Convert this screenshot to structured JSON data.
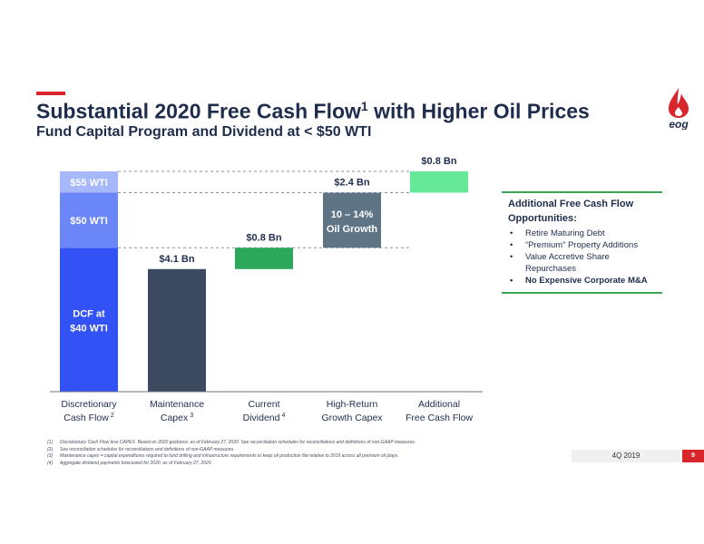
{
  "header": {
    "title_main": "Substantial 2020 Free Cash Flow",
    "title_sup": "1",
    "title_rest": " with Higher Oil Prices",
    "subtitle": "Fund Capital Program and Dividend at < $50 WTI",
    "logo_text": "eog"
  },
  "chart_data": {
    "type": "bar",
    "categories": [
      {
        "line1": "Discretionary",
        "line2": "Cash Flow",
        "sup": "2"
      },
      {
        "line1": "Maintenance",
        "line2": "Capex",
        "sup": "3"
      },
      {
        "line1": "Current",
        "line2": "Dividend",
        "sup": "4"
      },
      {
        "line1": "High-Return",
        "line2": "Growth Capex",
        "sup": ""
      },
      {
        "line1": "Additional",
        "line2": "Free Cash Flow",
        "sup": ""
      }
    ],
    "segments": [
      {
        "col": 0,
        "from": 0,
        "to": 8.1,
        "color": "#3352f5",
        "label1": "DCF at",
        "label2": "$40 WTI"
      },
      {
        "col": 0,
        "from": 8.1,
        "to": 11.2,
        "color": "#6b86f7",
        "label1": "$50 WTI",
        "label2": ""
      },
      {
        "col": 0,
        "from": 11.2,
        "to": 12.4,
        "color": "#a6b7fa",
        "label1": "$55 WTI",
        "label2": ""
      },
      {
        "col": 1,
        "from": 0,
        "to": 6.9,
        "color": "#3c4a5f",
        "label1": "",
        "label2": ""
      },
      {
        "col": 2,
        "from": 6.9,
        "to": 8.1,
        "color": "#2ba85a",
        "label1": "",
        "label2": ""
      },
      {
        "col": 3,
        "from": 8.1,
        "to": 11.2,
        "color": "#5f7585",
        "label1": "10 – 14%",
        "label2": "Oil Growth"
      },
      {
        "col": 4,
        "from": 11.2,
        "to": 12.4,
        "color": "#66e899",
        "label1": "",
        "label2": ""
      }
    ],
    "value_labels": [
      {
        "col": 1,
        "at": 6.9,
        "text": "$4.1 Bn"
      },
      {
        "col": 2,
        "at": 8.1,
        "text": "$0.8 Bn"
      },
      {
        "col": 3,
        "at": 11.2,
        "text": "$2.4 Bn"
      },
      {
        "col": 4,
        "at": 12.4,
        "text": "$0.8 Bn"
      }
    ],
    "connectors": [
      8.1,
      11.2,
      12.4
    ],
    "ylim": [
      0,
      12.4
    ]
  },
  "side_panel": {
    "title1": "Additional Free Cash Flow",
    "title2": "Opportunities:",
    "items": [
      {
        "text": "Retire Maturing Debt",
        "bold": false
      },
      {
        "text": "“Premium” Property Additions",
        "bold": false
      },
      {
        "text": "Value Accretive Share Repurchases",
        "bold": false
      },
      {
        "text": "No Expensive Corporate M&A",
        "bold": true
      }
    ]
  },
  "footnotes": [
    {
      "num": "(1)",
      "text": "Discretionary Cash Flow less CAPEX. Based on 2020 guidance, as of February 27, 2020. See reconciliation schedules for reconciliations and definitions of non-GAAP measures."
    },
    {
      "num": "(2)",
      "text": "See reconciliation schedules for reconciliations and definitions of non-GAAP measures."
    },
    {
      "num": "(3)",
      "text": "Maintenance capex = capital expenditures required to fund drilling and infrastructure requirements to keep oil production flat relative to 2019 across all premium oil plays."
    },
    {
      "num": "(4)",
      "text": "Aggregate dividend payments forecasted for 2020, as of February 27, 2020."
    }
  ],
  "footer": {
    "date": "4Q 2019",
    "page": "9"
  }
}
